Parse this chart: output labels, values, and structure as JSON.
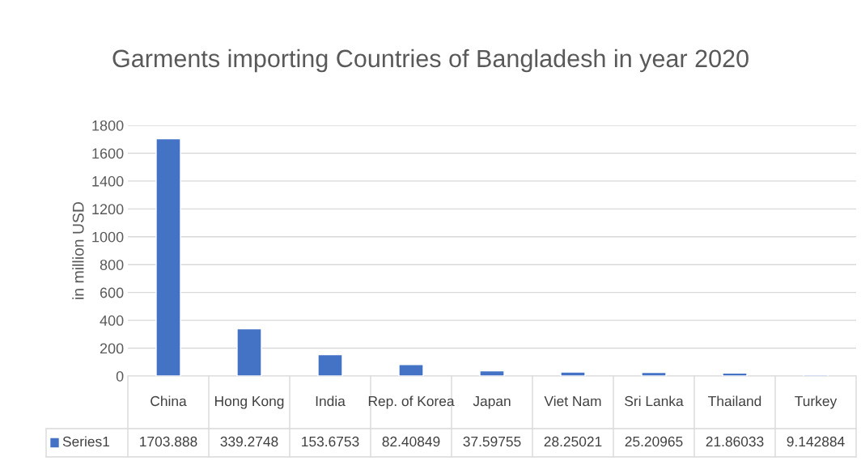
{
  "chart_data": {
    "type": "bar",
    "title": "Garments importing Countries of Bangladesh in year 2020",
    "ylabel": "in million USD",
    "categories": [
      "China",
      "Hong Kong",
      "India",
      "Rep. of Korea",
      "Japan",
      "Viet Nam",
      "Sri Lanka",
      "Thailand",
      "Turkey"
    ],
    "series": [
      {
        "name": "Series1",
        "color": "#4472c4",
        "values": [
          1703.888,
          339.2748,
          153.6753,
          82.40849,
          37.59755,
          28.25021,
          25.20965,
          21.86033,
          9.142884
        ]
      }
    ],
    "ylim": [
      0,
      1800
    ],
    "yticks": [
      0,
      200,
      400,
      600,
      800,
      1000,
      1200,
      1400,
      1600,
      1800
    ],
    "grid": "y",
    "data_labels": true
  }
}
